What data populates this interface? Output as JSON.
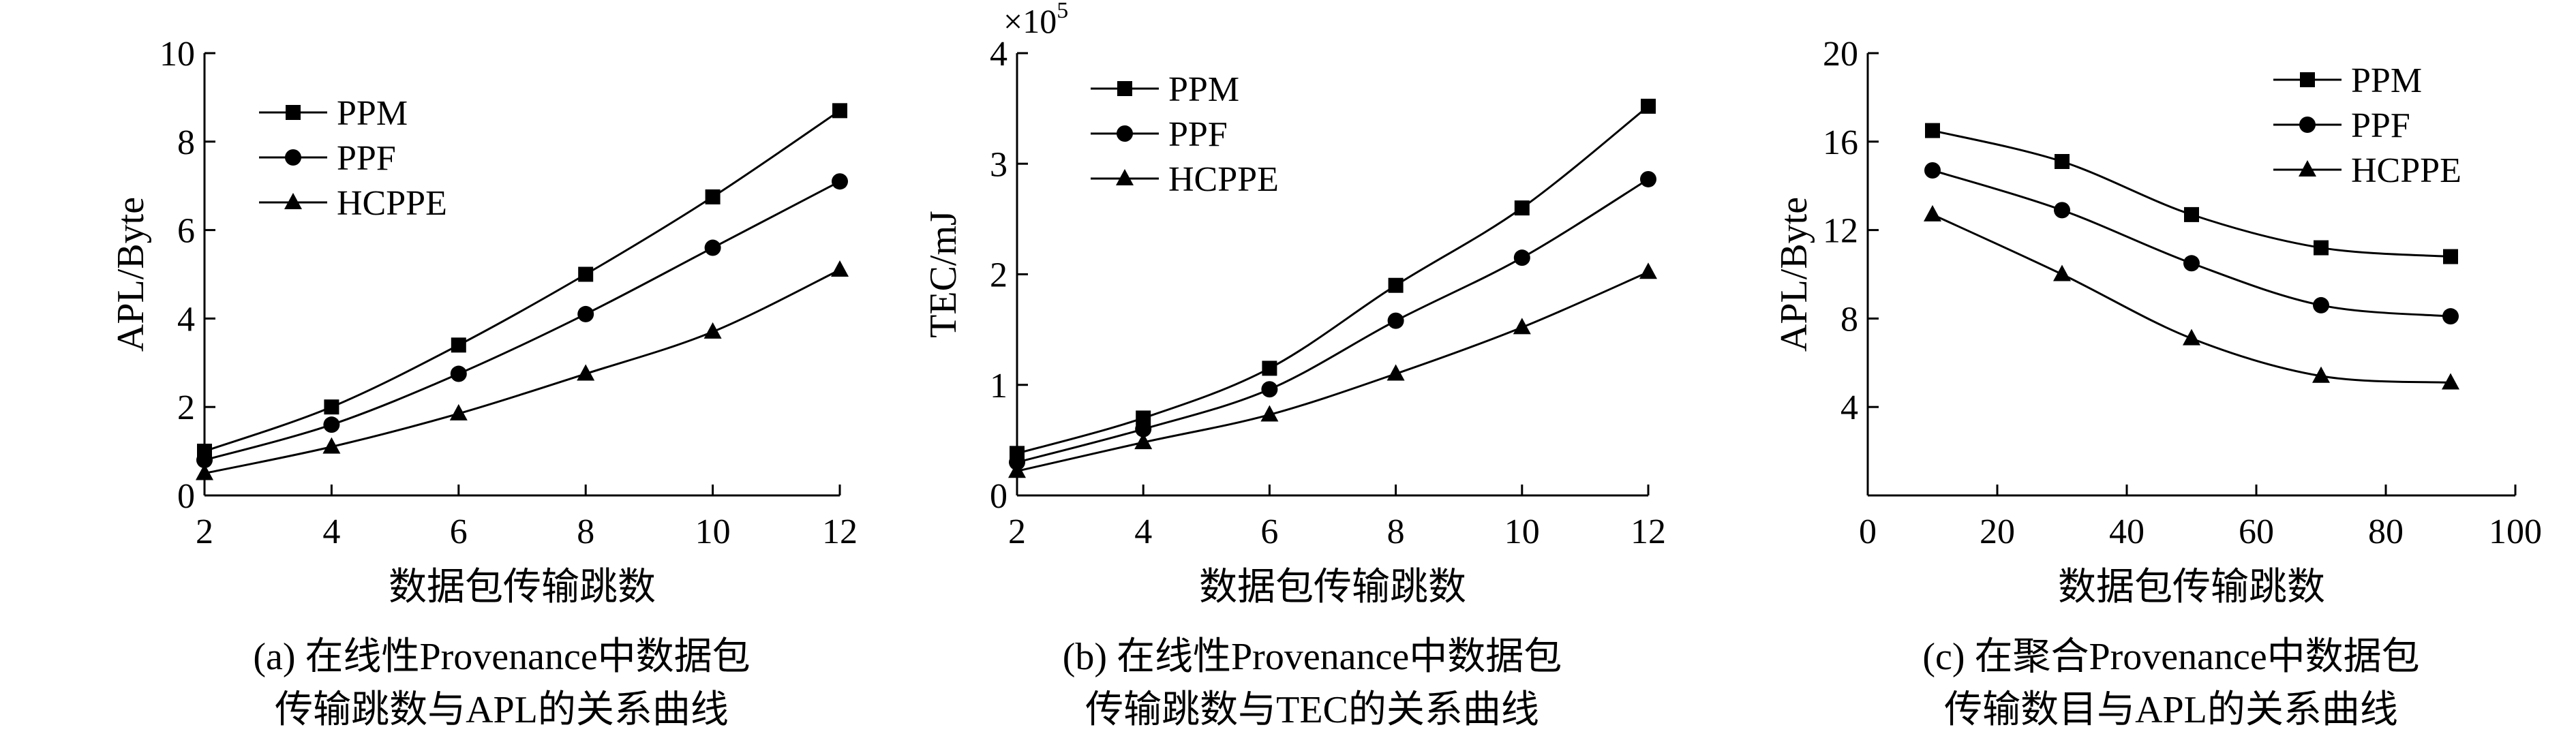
{
  "chart_data": [
    {
      "type": "line",
      "title": "",
      "xlabel": "数据包传输跳数",
      "ylabel": "APL/Byte",
      "caption_lines": [
        "(a) 在线性Provenance中数据包",
        "传输跳数与APL的关系曲线"
      ],
      "x": [
        2,
        4,
        6,
        8,
        10,
        12
      ],
      "xlim": [
        2,
        12
      ],
      "ylim": [
        0,
        10
      ],
      "xticks": [
        "2",
        "4",
        "6",
        "8",
        "10",
        "12"
      ],
      "yticks": [
        "0",
        "2",
        "4",
        "6",
        "8",
        "10"
      ],
      "legend_position": "top-left",
      "series": [
        {
          "name": "PPM",
          "marker": "square",
          "values": [
            1.0,
            2.0,
            3.4,
            5.0,
            6.75,
            8.7
          ]
        },
        {
          "name": "PPF",
          "marker": "circle",
          "values": [
            0.8,
            1.6,
            2.75,
            4.1,
            5.6,
            7.1
          ]
        },
        {
          "name": "HCPPE",
          "marker": "triangle",
          "values": [
            0.5,
            1.1,
            1.85,
            2.75,
            3.7,
            5.1
          ]
        }
      ]
    },
    {
      "type": "line",
      "title": "",
      "xlabel": "数据包传输跳数",
      "ylabel": "TEC/mJ",
      "scale_label": "×10^5",
      "caption_lines": [
        "(b) 在线性Provenance中数据包",
        "传输跳数与TEC的关系曲线"
      ],
      "x": [
        2,
        4,
        6,
        8,
        10,
        12
      ],
      "xlim": [
        2,
        12
      ],
      "ylim": [
        0,
        4
      ],
      "xticks": [
        "2",
        "4",
        "6",
        "8",
        "10",
        "12"
      ],
      "yticks": [
        "0",
        "1",
        "2",
        "3",
        "4"
      ],
      "legend_position": "top-left",
      "series": [
        {
          "name": "PPM",
          "marker": "square",
          "values": [
            0.38,
            0.7,
            1.15,
            1.9,
            2.6,
            3.52
          ]
        },
        {
          "name": "PPF",
          "marker": "circle",
          "values": [
            0.3,
            0.6,
            0.96,
            1.58,
            2.15,
            2.86
          ]
        },
        {
          "name": "HCPPE",
          "marker": "triangle",
          "values": [
            0.22,
            0.48,
            0.73,
            1.1,
            1.52,
            2.02
          ]
        }
      ]
    },
    {
      "type": "line",
      "title": "",
      "xlabel": "数据包传输跳数",
      "ylabel": "APL/Byte",
      "caption_lines": [
        "(c) 在聚合Provenance中数据包",
        "传输数目与APL的关系曲线"
      ],
      "x": [
        10,
        30,
        50,
        70,
        90
      ],
      "xlim": [
        0,
        100
      ],
      "ylim": [
        0,
        20
      ],
      "xticks": [
        "0",
        "20",
        "40",
        "60",
        "80",
        "100"
      ],
      "yticks": [
        "4",
        "8",
        "12",
        "16",
        "20"
      ],
      "legend_position": "top-right",
      "series": [
        {
          "name": "PPM",
          "marker": "square",
          "values": [
            16.5,
            15.1,
            12.7,
            11.2,
            10.8
          ]
        },
        {
          "name": "PPF",
          "marker": "circle",
          "values": [
            14.7,
            12.9,
            10.5,
            8.6,
            8.1
          ]
        },
        {
          "name": "HCPPE",
          "marker": "triangle",
          "values": [
            12.7,
            10.0,
            7.1,
            5.4,
            5.1
          ]
        }
      ]
    }
  ]
}
